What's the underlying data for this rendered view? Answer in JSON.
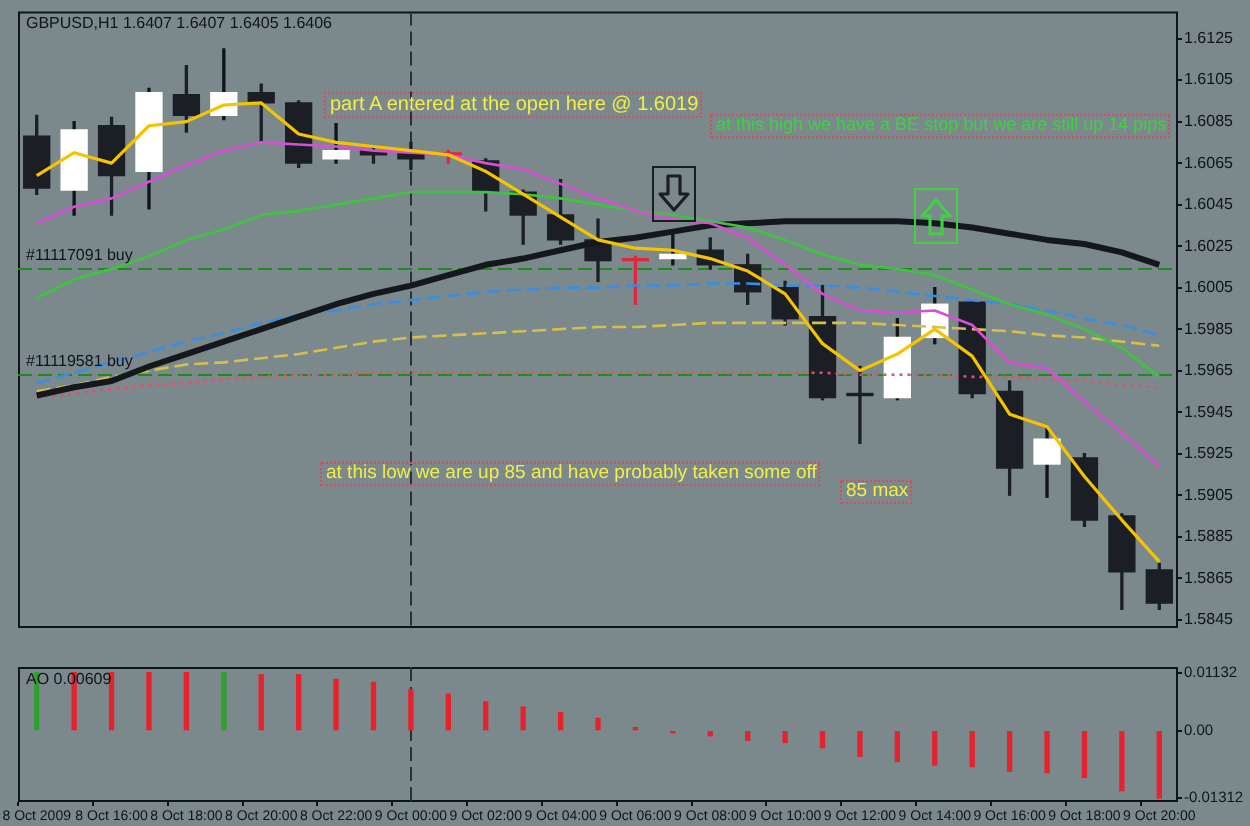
{
  "chart_data": [
    {
      "type": "candlestick",
      "title": "GBPUSD,H1 1.6407 1.6407 1.6405 1.6406",
      "categories": [
        "8 Oct 2009",
        null,
        "8 Oct 16:00",
        null,
        "8 Oct 18:00",
        null,
        "8 Oct 20:00",
        null,
        "8 Oct 22:00",
        null,
        "9 Oct 00:00",
        null,
        "9 Oct 02:00",
        null,
        "9 Oct 04:00",
        null,
        "9 Oct 06:00",
        null,
        "9 Oct 08:00",
        null,
        "9 Oct 10:00",
        null,
        "9 Oct 12:00",
        null,
        "9 Oct 14:00",
        null,
        "9 Oct 16:00",
        null,
        "9 Oct 18:00",
        null,
        "9 Oct 20:00"
      ],
      "ohlc": [
        [
          1.6078,
          1.6088,
          1.605,
          1.6053
        ],
        [
          1.6052,
          1.6085,
          1.604,
          1.6081
        ],
        [
          1.6083,
          1.6087,
          1.604,
          1.6059
        ],
        [
          1.6061,
          1.6101,
          1.6043,
          1.6099
        ],
        [
          1.6098,
          1.6112,
          1.608,
          1.6088
        ],
        [
          1.6088,
          1.612,
          1.6086,
          1.6099
        ],
        [
          1.6099,
          1.6103,
          1.6075,
          1.6094
        ],
        [
          1.6094,
          1.6095,
          1.6063,
          1.6065
        ],
        [
          1.6067,
          1.6084,
          1.6065,
          1.6071
        ],
        [
          1.6071,
          1.6073,
          1.6065,
          1.6069
        ],
        [
          1.607,
          1.6075,
          1.6062,
          1.6067
        ],
        [
          1.6069,
          1.6071,
          1.6065,
          1.6069
        ],
        [
          1.6066,
          1.6067,
          1.6042,
          1.6051
        ],
        [
          1.6051,
          1.6052,
          1.6026,
          1.604
        ],
        [
          1.604,
          1.6057,
          1.6026,
          1.6028
        ],
        [
          1.6028,
          1.6038,
          1.6008,
          1.6018
        ],
        [
          1.6018,
          1.602,
          1.5997,
          1.6018
        ],
        [
          1.6019,
          1.6031,
          1.6016,
          1.6021
        ],
        [
          1.6023,
          1.6029,
          1.6014,
          1.6016
        ],
        [
          1.6016,
          1.6021,
          1.5997,
          1.6003
        ],
        [
          1.6005,
          1.6008,
          1.5987,
          1.599
        ],
        [
          1.5991,
          1.6006,
          1.5951,
          1.5952
        ],
        [
          1.5954,
          1.5967,
          1.593,
          1.5953
        ],
        [
          1.5952,
          1.599,
          1.5951,
          1.5981
        ],
        [
          1.5981,
          1.6005,
          1.5978,
          1.5997
        ],
        [
          1.5998,
          1.5999,
          1.5952,
          1.5954
        ],
        [
          1.5955,
          1.596,
          1.5905,
          1.5918
        ],
        [
          1.592,
          1.5937,
          1.5904,
          1.5932
        ],
        [
          1.5923,
          1.5925,
          1.589,
          1.5893
        ],
        [
          1.5895,
          1.5896,
          1.585,
          1.5868
        ],
        [
          1.5869,
          1.5872,
          1.585,
          1.5853
        ]
      ],
      "colors": [
        "#1b1f25",
        "#ffffff",
        "#1b1f25",
        "#ffffff",
        "#1b1f25",
        "#ffffff",
        "#1b1f25",
        "#1b1f25",
        "#ffffff",
        "#1b1f25",
        "#1b1f25",
        "#e0283c",
        "#1b1f25",
        "#1b1f25",
        "#1b1f25",
        "#1b1f25",
        "#e0283c",
        "#ffffff",
        "#1b1f25",
        "#1b1f25",
        "#1b1f25",
        "#1b1f25",
        "#1b1f25",
        "#ffffff",
        "#ffffff",
        "#1b1f25",
        "#1b1f25",
        "#ffffff",
        "#1b1f25",
        "#1b1f25",
        "#1b1f25"
      ],
      "series": [
        {
          "type": "line",
          "color": "#f5c400",
          "values": [
            1.6059,
            1.607,
            1.6065,
            1.6083,
            1.6085,
            1.6093,
            1.6094,
            1.6079,
            1.6075,
            1.6073,
            1.6071,
            1.6069,
            1.6061,
            1.605,
            1.6039,
            1.6028,
            1.6024,
            1.6023,
            1.6019,
            1.6013,
            1.6002,
            1.5978,
            1.5965,
            1.5973,
            1.5985,
            1.5972,
            1.5944,
            1.5938,
            1.5914,
            1.5893,
            1.5873
          ]
        },
        {
          "type": "line",
          "color": "#d64fd6",
          "values": [
            1.6036,
            1.6044,
            1.6048,
            1.6056,
            1.6064,
            1.6071,
            1.6075,
            1.6074,
            1.6073,
            1.6071,
            1.607,
            1.6069,
            1.6065,
            1.6062,
            1.6055,
            1.6048,
            1.6042,
            1.6038,
            1.6036,
            1.6029,
            1.6016,
            1.6002,
            1.5994,
            1.5993,
            1.5994,
            1.5987,
            1.5969,
            1.5966,
            1.595,
            1.5935,
            1.5919
          ]
        },
        {
          "type": "line",
          "color": "#3fc43f",
          "values": [
            1.6,
            1.6009,
            1.6014,
            1.602,
            1.6028,
            1.6033,
            1.604,
            1.6042,
            1.6045,
            1.6048,
            1.6051,
            1.6051,
            1.6051,
            1.605,
            1.6048,
            1.6045,
            1.6042,
            1.604,
            1.6037,
            1.6034,
            1.6028,
            1.6021,
            1.6016,
            1.6014,
            1.6011,
            1.6004,
            1.5997,
            1.5992,
            1.5985,
            1.5976,
            1.5962
          ]
        },
        {
          "type": "line",
          "color": "#14171b",
          "values": [
            1.5953,
            1.5957,
            1.596,
            1.5967,
            1.5973,
            1.5979,
            1.5985,
            1.5991,
            1.5997,
            1.6002,
            1.6006,
            1.6011,
            1.6016,
            1.6019,
            1.6023,
            1.6027,
            1.6029,
            1.6032,
            1.6035,
            1.6036,
            1.6037,
            1.6037,
            1.6037,
            1.6037,
            1.6036,
            1.6034,
            1.6031,
            1.6028,
            1.6026,
            1.6022,
            1.6016
          ]
        },
        {
          "type": "line",
          "color": "#3a8de0",
          "line_style": "dashed",
          "values": [
            1.5959,
            1.5964,
            1.5969,
            1.5974,
            1.5979,
            1.5983,
            1.5988,
            1.5992,
            1.5994,
            1.5997,
            1.5999,
            1.6001,
            1.6003,
            1.6004,
            1.6005,
            1.6005,
            1.6006,
            1.6006,
            1.6007,
            1.6007,
            1.6006,
            1.6006,
            1.6005,
            1.6003,
            1.6001,
            1.5999,
            1.5997,
            1.5994,
            1.599,
            1.5987,
            1.5982
          ]
        },
        {
          "type": "line",
          "color": "#d4c04c",
          "line_style": "dashed",
          "values": [
            1.5955,
            1.5958,
            1.5962,
            1.5965,
            1.5968,
            1.5969,
            1.5971,
            1.5973,
            1.5976,
            1.5979,
            1.5981,
            1.5982,
            1.5983,
            1.5984,
            1.5985,
            1.5986,
            1.5986,
            1.5987,
            1.5988,
            1.5988,
            1.5988,
            1.5988,
            1.5988,
            1.5987,
            1.5986,
            1.5985,
            1.5984,
            1.5982,
            1.5981,
            1.5979,
            1.5977
          ]
        },
        {
          "type": "line",
          "color": "#e0506a",
          "line_style": "dotted",
          "values": [
            1.5952,
            1.5954,
            1.5956,
            1.5958,
            1.5959,
            1.5961,
            1.5962,
            1.5963,
            1.5963,
            1.5964,
            1.5964,
            1.5964,
            1.5964,
            1.5964,
            1.5964,
            1.5964,
            1.5964,
            1.5964,
            1.5964,
            1.5964,
            1.5964,
            1.5964,
            1.5963,
            1.5963,
            1.5963,
            1.5962,
            1.5962,
            1.5961,
            1.596,
            1.5958,
            1.5957
          ]
        }
      ],
      "ylim": [
        1.5841,
        1.6138
      ],
      "yticks": [
        1.6125,
        1.6105,
        1.6085,
        1.6065,
        1.6045,
        1.6025,
        1.6005,
        1.5985,
        1.5965,
        1.5945,
        1.5925,
        1.5905,
        1.5885,
        1.5865,
        1.5845
      ],
      "tick_labels": "y",
      "ref_lines": [
        {
          "axis": "x",
          "value": "9 Oct 00:00",
          "color": "#2b3036",
          "line_style": "dashed"
        },
        {
          "axis": "y",
          "value": 1.6014,
          "label": "#11117091 buy",
          "color": "#1f8a1f",
          "line_style": "dashed"
        },
        {
          "axis": "y",
          "value": 1.5963,
          "label": "#11119581 buy",
          "color": "#1f8a1f",
          "line_style": "dashed"
        }
      ],
      "annotations": [
        "part A entered at the open here @ 1.6019",
        "at this high we have a BE stop but we are still up 14 pips",
        "at this low we are up 85 and have probably taken some off",
        "85 max"
      ]
    },
    {
      "type": "bar",
      "title": "AO 0.00609",
      "categories": [
        "8 Oct 2009",
        null,
        "8 Oct 16:00",
        null,
        "8 Oct 18:00",
        null,
        "8 Oct 20:00",
        null,
        "8 Oct 22:00",
        null,
        "9 Oct 00:00",
        null,
        "9 Oct 02:00",
        null,
        "9 Oct 04:00",
        null,
        "9 Oct 06:00",
        null,
        "9 Oct 08:00",
        null,
        "9 Oct 10:00",
        null,
        "9 Oct 12:00",
        null,
        "9 Oct 14:00",
        null,
        "9 Oct 16:00",
        null,
        "9 Oct 18:00",
        null,
        "9 Oct 20:00"
      ],
      "values": [
        0.0113,
        0.0113,
        0.0113,
        0.0113,
        0.0113,
        0.0113,
        0.0109,
        0.0109,
        0.01,
        0.0094,
        0.008,
        0.0071,
        0.0056,
        0.0046,
        0.0035,
        0.0024,
        0.0006,
        -0.0004,
        -0.001,
        -0.0019,
        -0.0023,
        -0.0033,
        -0.005,
        -0.006,
        -0.0067,
        -0.007,
        -0.0079,
        -0.0082,
        -0.0091,
        -0.0117,
        -0.0131
      ],
      "colors": [
        "#2fa02f",
        "#e5222e",
        "#e5222e",
        "#e5222e",
        "#e5222e",
        "#2fa02f",
        "#e5222e",
        "#e5222e",
        "#e5222e",
        "#e5222e",
        "#e5222e",
        "#e5222e",
        "#e5222e",
        "#e5222e",
        "#e5222e",
        "#e5222e",
        "#e5222e",
        "#e5222e",
        "#e5222e",
        "#e5222e",
        "#e5222e",
        "#e5222e",
        "#e5222e",
        "#e5222e",
        "#e5222e",
        "#e5222e",
        "#e5222e",
        "#e5222e",
        "#e5222e",
        "#e5222e",
        "#e5222e"
      ],
      "ylim": [
        -0.0139,
        0.0124
      ],
      "yticks": [
        0.01132,
        {
          "value": 0,
          "label": "0.00"
        },
        -0.01312
      ],
      "ref_lines": [
        {
          "axis": "x",
          "value": "9 Oct 00:00",
          "color": "#2b3036",
          "line_style": "dashed"
        }
      ]
    }
  ]
}
